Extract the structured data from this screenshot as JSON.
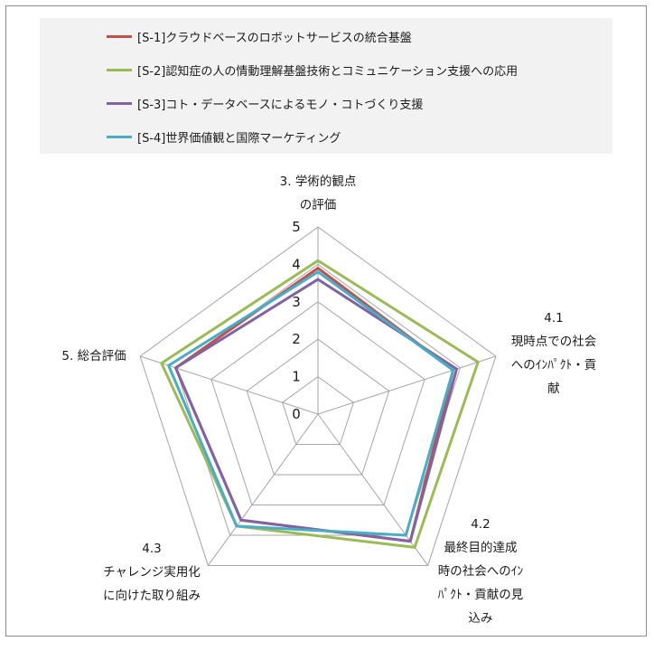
{
  "chart_data": {
    "type": "radar",
    "title": "",
    "axes": [
      [
        "3. 学術的観点",
        "の評価"
      ],
      [
        "4.1",
        "現時点での社会",
        "へのｲﾝﾊﾟｸﾄ・貢",
        "献"
      ],
      [
        "4.2",
        "最終目的達成",
        "時の社会へのｲﾝ",
        "ﾊﾟｸﾄ・貢献の見",
        "込み"
      ],
      [
        "4.3",
        "チャレンジ実用化",
        "に向けた取り組み"
      ],
      [
        "5. 総合評価"
      ]
    ],
    "ticks": [
      "0",
      "1",
      "2",
      "3",
      "4",
      "5"
    ],
    "rlim": [
      0,
      5
    ],
    "grid": true,
    "legend_position": "top",
    "series": [
      {
        "name": "[S-1]クラウドベースのロボットサービスの統合基盤",
        "color": "#c0504d",
        "values": [
          3.9,
          3.8,
          4.2,
          3.5,
          4.0
        ]
      },
      {
        "name": "[S-2]認知症の人の情動理解基盤技術とコミュニケーション支援への応用",
        "color": "#9bbb59",
        "values": [
          4.1,
          4.5,
          4.4,
          3.7,
          4.4
        ]
      },
      {
        "name": "[S-3]コト・データベースによるモノ・コトづくり支援",
        "color": "#8064a2",
        "values": [
          3.6,
          3.9,
          4.2,
          3.5,
          4.0
        ]
      },
      {
        "name": "[S-4]世界価値観と国際マーケティング",
        "color": "#4bacc6",
        "values": [
          3.8,
          3.8,
          4.0,
          3.7,
          4.2
        ]
      }
    ]
  }
}
